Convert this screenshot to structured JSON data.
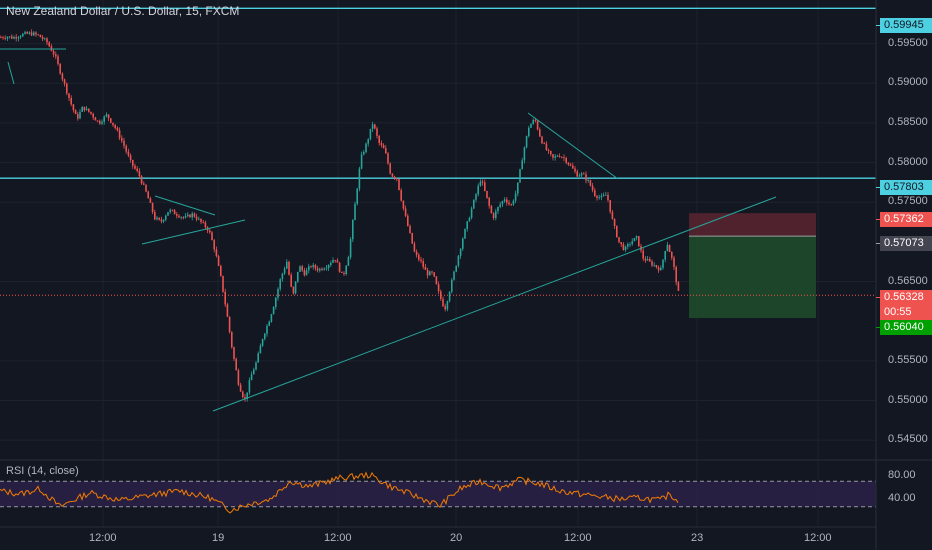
{
  "header": {
    "symbol_title": "New Zealand Dollar / U.S. Dollar, 15, FXCM"
  },
  "y_axis": {
    "ticks": [
      "0.59500",
      "0.59000",
      "0.58500",
      "0.58000",
      "0.57500",
      "0.56500",
      "0.55500",
      "0.55000",
      "0.54500"
    ]
  },
  "x_axis": {
    "ticks": [
      "12:00",
      "19",
      "12:00",
      "20",
      "12:00",
      "23",
      "12:00"
    ]
  },
  "price_tags": [
    {
      "label": "0.59945",
      "kind": "line"
    },
    {
      "label": "0.57803",
      "kind": "line"
    },
    {
      "label": "0.57362",
      "kind": "stop"
    },
    {
      "label": "0.57073",
      "kind": "entry"
    },
    {
      "label": "0.56328",
      "kind": "last"
    },
    {
      "label": "00:55",
      "kind": "countdown"
    },
    {
      "label": "0.56040",
      "kind": "target"
    }
  ],
  "rsi_panel": {
    "label": "RSI (14, close)",
    "ticks": [
      "80.00",
      "40.00"
    ]
  },
  "colors": {
    "background": "#131722",
    "up": "#26a69a",
    "down": "#ef5350",
    "horizontal_line": "#4dd0e1",
    "trendline": "#26a69a",
    "stop_zone": "#5a2430",
    "target_zone": "#1f4a2a",
    "rsi_line": "#f57c00",
    "rsi_band": "#2a2146"
  },
  "chart_data": {
    "type": "candlestick",
    "title": "New Zealand Dollar / U.S. Dollar, 15, FXCM",
    "ylim": [
      0.5425,
      0.6005
    ],
    "horizontal_levels": [
      0.59945,
      0.57803
    ],
    "current_price": 0.56328,
    "position": {
      "side": "short",
      "entry": 0.57073,
      "stop": 0.57362,
      "target": 0.5604
    },
    "close_path": [
      [
        0,
        0.5958
      ],
      [
        6,
        0.5959
      ],
      [
        12,
        0.59575
      ],
      [
        20,
        0.5961
      ],
      [
        30,
        0.5963
      ],
      [
        38,
        0.596
      ],
      [
        46,
        0.5952
      ],
      [
        54,
        0.5935
      ],
      [
        62,
        0.5905
      ],
      [
        70,
        0.5875
      ],
      [
        76,
        0.5855
      ],
      [
        82,
        0.587
      ],
      [
        90,
        0.5862
      ],
      [
        98,
        0.585
      ],
      [
        106,
        0.586
      ],
      [
        114,
        0.5845
      ],
      [
        122,
        0.5825
      ],
      [
        130,
        0.58
      ],
      [
        138,
        0.5785
      ],
      [
        146,
        0.576
      ],
      [
        154,
        0.573
      ],
      [
        160,
        0.5725
      ],
      [
        168,
        0.574
      ],
      [
        176,
        0.5735
      ],
      [
        184,
        0.573
      ],
      [
        192,
        0.5735
      ],
      [
        200,
        0.5725
      ],
      [
        208,
        0.5715
      ],
      [
        214,
        0.569
      ],
      [
        220,
        0.5655
      ],
      [
        226,
        0.561
      ],
      [
        232,
        0.556
      ],
      [
        238,
        0.552
      ],
      [
        244,
        0.55
      ],
      [
        250,
        0.553
      ],
      [
        256,
        0.555
      ],
      [
        262,
        0.558
      ],
      [
        268,
        0.56
      ],
      [
        274,
        0.5625
      ],
      [
        280,
        0.5655
      ],
      [
        286,
        0.5675
      ],
      [
        292,
        0.563
      ],
      [
        298,
        0.567
      ],
      [
        304,
        0.566
      ],
      [
        310,
        0.567
      ],
      [
        318,
        0.5665
      ],
      [
        326,
        0.567
      ],
      [
        334,
        0.568
      ],
      [
        342,
        0.5655
      ],
      [
        348,
        0.5685
      ],
      [
        354,
        0.5745
      ],
      [
        360,
        0.5805
      ],
      [
        366,
        0.5825
      ],
      [
        372,
        0.585
      ],
      [
        378,
        0.5825
      ],
      [
        384,
        0.5815
      ],
      [
        390,
        0.5785
      ],
      [
        396,
        0.578
      ],
      [
        402,
        0.5745
      ],
      [
        408,
        0.5715
      ],
      [
        414,
        0.5685
      ],
      [
        420,
        0.5675
      ],
      [
        426,
        0.566
      ],
      [
        432,
        0.566
      ],
      [
        438,
        0.5635
      ],
      [
        444,
        0.5615
      ],
      [
        450,
        0.5645
      ],
      [
        456,
        0.5675
      ],
      [
        462,
        0.5705
      ],
      [
        468,
        0.573
      ],
      [
        474,
        0.5755
      ],
      [
        480,
        0.578
      ],
      [
        486,
        0.5755
      ],
      [
        492,
        0.573
      ],
      [
        498,
        0.5745
      ],
      [
        504,
        0.5755
      ],
      [
        510,
        0.5745
      ],
      [
        516,
        0.5765
      ],
      [
        522,
        0.581
      ],
      [
        528,
        0.5845
      ],
      [
        534,
        0.5855
      ],
      [
        540,
        0.583
      ],
      [
        546,
        0.5815
      ],
      [
        552,
        0.5805
      ],
      [
        558,
        0.581
      ],
      [
        564,
        0.5805
      ],
      [
        570,
        0.5795
      ],
      [
        576,
        0.5785
      ],
      [
        582,
        0.5785
      ],
      [
        588,
        0.5775
      ],
      [
        594,
        0.576
      ],
      [
        600,
        0.5755
      ],
      [
        606,
        0.576
      ],
      [
        612,
        0.5725
      ],
      [
        618,
        0.57
      ],
      [
        624,
        0.569
      ],
      [
        630,
        0.57
      ],
      [
        636,
        0.5705
      ],
      [
        642,
        0.568
      ],
      [
        648,
        0.5675
      ],
      [
        654,
        0.567
      ],
      [
        660,
        0.5665
      ],
      [
        666,
        0.57
      ],
      [
        672,
        0.5675
      ],
      [
        678,
        0.56328
      ]
    ],
    "rsi": {
      "range": [
        0,
        100
      ],
      "band": [
        70,
        30
      ],
      "values": [
        [
          0,
          55
        ],
        [
          20,
          50
        ],
        [
          40,
          58
        ],
        [
          60,
          30
        ],
        [
          70,
          38
        ],
        [
          90,
          52
        ],
        [
          120,
          40
        ],
        [
          150,
          48
        ],
        [
          180,
          55
        ],
        [
          210,
          44
        ],
        [
          230,
          25
        ],
        [
          250,
          35
        ],
        [
          270,
          42
        ],
        [
          290,
          70
        ],
        [
          310,
          62
        ],
        [
          340,
          75
        ],
        [
          370,
          80
        ],
        [
          390,
          62
        ],
        [
          410,
          50
        ],
        [
          440,
          32
        ],
        [
          460,
          58
        ],
        [
          480,
          70
        ],
        [
          500,
          60
        ],
        [
          520,
          72
        ],
        [
          540,
          66
        ],
        [
          560,
          55
        ],
        [
          580,
          50
        ],
        [
          600,
          46
        ],
        [
          620,
          42
        ],
        [
          640,
          44
        ],
        [
          660,
          40
        ],
        [
          670,
          50
        ],
        [
          678,
          38
        ]
      ]
    }
  }
}
